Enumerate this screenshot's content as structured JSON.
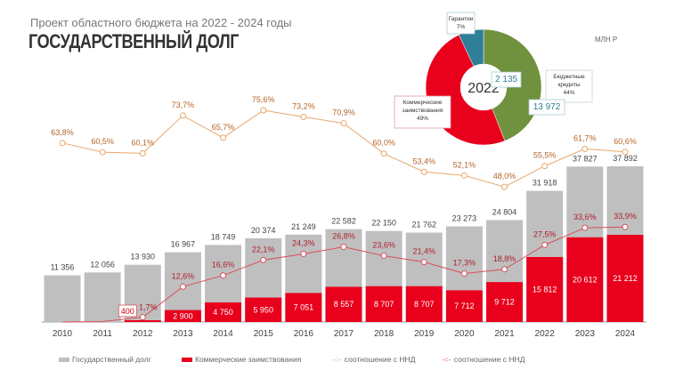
{
  "header": {
    "subtitle": "Проект областного бюджета на 2022 - 2024 годы",
    "title": "ГОСУДАРСТВЕННЫЙ ДОЛГ",
    "unit": "МЛН Р"
  },
  "colors": {
    "debt": "#bfbfbf",
    "commercial": "#e8001c",
    "ratio1": "#e8a66b",
    "ratio2": "#d8505a",
    "budget": "#70913d",
    "guarantee": "#2e7f97"
  },
  "chart_data": [
    {
      "type": "bar",
      "categories": [
        "2010",
        "2011",
        "2012",
        "2013",
        "2014",
        "2015",
        "2016",
        "2017",
        "2018",
        "2019",
        "2020",
        "2021",
        "2022",
        "2023",
        "2024"
      ],
      "series": [
        {
          "name": "Государственный долг",
          "values": [
            11356,
            12056,
            13930,
            16967,
            18749,
            20374,
            21249,
            22582,
            22150,
            21762,
            23273,
            24804,
            31918,
            37827,
            37892
          ],
          "labels": [
            "11 356",
            "12 056",
            "13 930",
            "16 967",
            "18 749",
            "20 374",
            "21 249",
            "22 582",
            "22 150",
            "21 762",
            "23 273",
            "24 804",
            "31 918",
            "37 827",
            "37 892"
          ]
        },
        {
          "name": "Коммерческие заимствования",
          "values": [
            null,
            null,
            400,
            2900,
            4750,
            5950,
            7051,
            8557,
            8707,
            8707,
            7712,
            9712,
            15812,
            20612,
            21212
          ],
          "labels": [
            "",
            "",
            "400",
            "2 900",
            "4 750",
            "5 950",
            "7 051",
            "8 557",
            "8 707",
            "8 707",
            "7 712",
            "9 712",
            "15 812",
            "20 612",
            "21 212"
          ]
        },
        {
          "name": "соотношение с ННД",
          "type": "line",
          "values": [
            63.8,
            60.5,
            60.1,
            73.7,
            65.7,
            75.6,
            73.2,
            70.9,
            60.0,
            53.4,
            52.1,
            48.0,
            55.5,
            61.7,
            60.6
          ],
          "labels": [
            "63,8%",
            "60,5%",
            "60,1%",
            "73,7%",
            "65,7%",
            "75,6%",
            "73,2%",
            "70,9%",
            "60,0%",
            "53,4%",
            "52,1%",
            "48,0%",
            "55,5%",
            "61,7%",
            "60,6%"
          ]
        },
        {
          "name": "соотношение с ННД",
          "type": "line",
          "values": [
            null,
            null,
            1.7,
            12.6,
            16.6,
            22.1,
            24.3,
            26.8,
            23.6,
            21.4,
            17.3,
            18.8,
            27.5,
            33.6,
            33.9
          ],
          "labels": [
            "",
            "",
            "1,7%",
            "12,6%",
            "16,6%",
            "22,1%",
            "24,3%",
            "26,8%",
            "23,6%",
            "21,4%",
            "17,3%",
            "18,8%",
            "27,5%",
            "33,6%",
            "33,9%"
          ]
        }
      ],
      "legend": "bottom"
    },
    {
      "type": "pie",
      "center_label": "2022",
      "slices": [
        {
          "name": "Бюджетные кредиты",
          "percent": 44,
          "value": 13972,
          "value_label": "13 972",
          "pct_label": "44%"
        },
        {
          "name": "Коммерческие заимствования",
          "percent": 49,
          "pct_label": "49%"
        },
        {
          "name": "Гарантии",
          "percent": 7,
          "value": 2135,
          "value_label": "2 135",
          "pct_label": "7%"
        }
      ]
    }
  ]
}
